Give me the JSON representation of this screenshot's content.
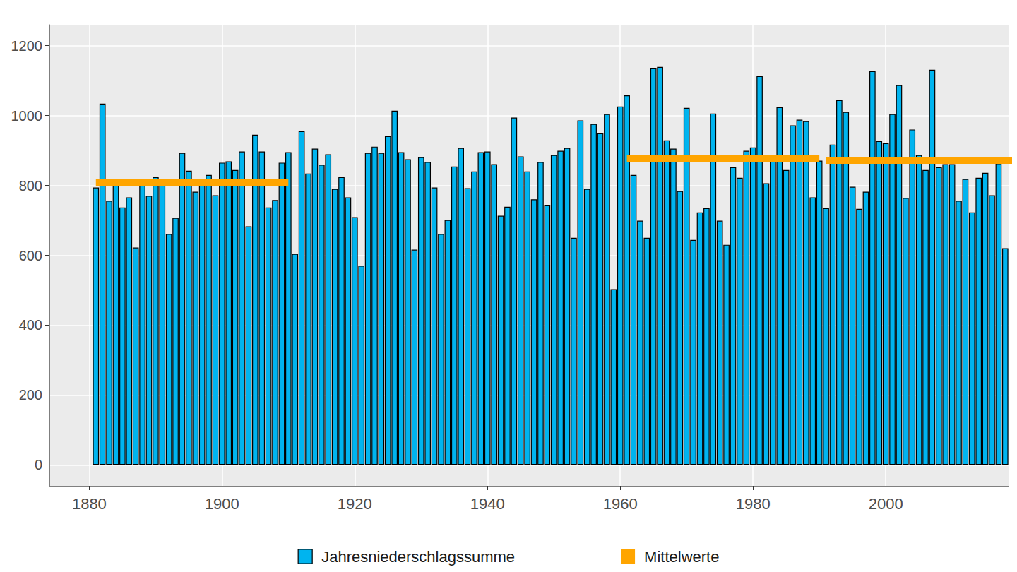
{
  "chart_data": {
    "type": "bar",
    "xlim": [
      1874,
      2018.5
    ],
    "xticks": [
      1880,
      1900,
      1920,
      1940,
      1960,
      1980,
      2000
    ],
    "ylim": [
      -60,
      1260
    ],
    "yticks": [
      0,
      200,
      400,
      600,
      800,
      1000,
      1200
    ],
    "grid": true,
    "legend": "bottom",
    "series": [
      {
        "name": "Jahresniederschlagssumme",
        "type": "bar",
        "color": "#00b4ef",
        "x": [
          1881,
          1882,
          1883,
          1884,
          1885,
          1886,
          1887,
          1888,
          1889,
          1890,
          1891,
          1892,
          1893,
          1894,
          1895,
          1896,
          1897,
          1898,
          1899,
          1900,
          1901,
          1902,
          1903,
          1904,
          1905,
          1906,
          1907,
          1908,
          1909,
          1910,
          1911,
          1912,
          1913,
          1914,
          1915,
          1916,
          1917,
          1918,
          1919,
          1920,
          1921,
          1922,
          1923,
          1924,
          1925,
          1926,
          1927,
          1928,
          1929,
          1930,
          1931,
          1932,
          1933,
          1934,
          1935,
          1936,
          1937,
          1938,
          1939,
          1940,
          1941,
          1942,
          1943,
          1944,
          1945,
          1946,
          1947,
          1948,
          1949,
          1950,
          1951,
          1952,
          1953,
          1954,
          1955,
          1956,
          1957,
          1958,
          1959,
          1960,
          1961,
          1962,
          1963,
          1964,
          1965,
          1966,
          1967,
          1968,
          1969,
          1970,
          1971,
          1972,
          1973,
          1974,
          1975,
          1976,
          1977,
          1978,
          1979,
          1980,
          1981,
          1982,
          1983,
          1984,
          1985,
          1986,
          1987,
          1988,
          1989,
          1990,
          1991,
          1992,
          1993,
          1994,
          1995,
          1996,
          1997,
          1998,
          1999,
          2000,
          2001,
          2002,
          2003,
          2004,
          2005,
          2006,
          2007,
          2008,
          2009,
          2010,
          2011,
          2012,
          2013,
          2014,
          2015,
          2016,
          2017,
          2018
        ],
        "values": [
          794,
          1034,
          756,
          802,
          737,
          766,
          622,
          810,
          770,
          824,
          800,
          661,
          707,
          893,
          842,
          782,
          800,
          830,
          772,
          865,
          869,
          844,
          897,
          683,
          945,
          897,
          737,
          758,
          865,
          895,
          604,
          955,
          834,
          905,
          859,
          889,
          790,
          824,
          766,
          709,
          570,
          893,
          911,
          893,
          941,
          1014,
          895,
          875,
          616,
          881,
          867,
          794,
          661,
          701,
          854,
          907,
          792,
          840,
          895,
          897,
          861,
          713,
          739,
          994,
          883,
          840,
          760,
          867,
          743,
          887,
          899,
          907,
          650,
          986,
          790,
          976,
          949,
          1004,
          503,
          1026,
          1058,
          830,
          699,
          650,
          1135,
          1139,
          929,
          905,
          784,
          1022,
          644,
          723,
          735,
          1006,
          699,
          630,
          852,
          822,
          899,
          909,
          1113,
          806,
          869,
          1024,
          844,
          972,
          988,
          984,
          766,
          871,
          735,
          917,
          1044,
          1010,
          796,
          733,
          782,
          1127,
          927,
          921,
          1004,
          1087,
          764,
          960,
          887,
          844,
          1131,
          852,
          861,
          861,
          756,
          818,
          723,
          822,
          836,
          772,
          863,
          620
        ]
      },
      {
        "name": "Mittelwerte",
        "type": "line",
        "color": "#ffa500",
        "segments": [
          {
            "x": [
              1881,
              1910
            ],
            "values": [
              808,
              808
            ]
          },
          {
            "x": [
              1961,
              1990
            ],
            "values": [
              877,
              877
            ]
          },
          {
            "x": [
              1991,
              2020
            ],
            "values": [
              871,
              871
            ]
          }
        ]
      }
    ]
  }
}
